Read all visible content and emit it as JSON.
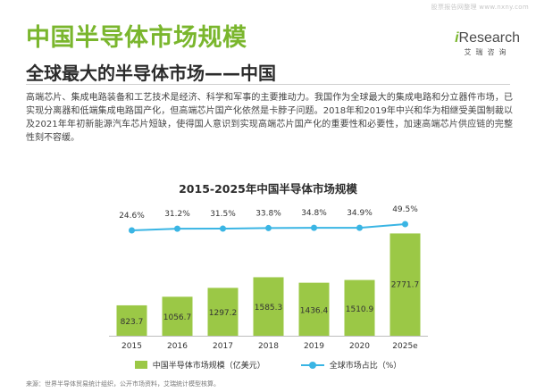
{
  "watermark": "股票报告网整理 www.nxny.com",
  "header": {
    "title": "中国半导体市场规模",
    "subtitle": "全球最大的半导体市场——中国"
  },
  "logo": {
    "mark_i": "i",
    "mark_rest": "Research",
    "sub": "艾瑞咨询"
  },
  "body_text": "高端芯片、集成电路装备和工艺技术是经济、科学和军事的主要推动力。我国作为全球最大的集成电路和分立器件市场，已实现分离器和低端集成电路国产化，但高端芯片国产化依然是卡脖子问题。2018年和2019年中兴和华为相继受美国制裁以及2021年年初新能源汽车芯片短缺，使得国人意识到实现高端芯片国产化的重要性和必要性，加速高端芯片供应链的完整性刻不容缓。",
  "source": "来源：世界半导体贸易统计组织，公开市场资料，艾瑞统计模型核算。",
  "colors": {
    "accent": "#7ab62d",
    "bar": "#9bc846",
    "line": "#3ab5e4"
  },
  "chart_data": {
    "type": "bar",
    "title": "2015-2025年中国半导体市场规模",
    "categories": [
      "2015",
      "2016",
      "2017",
      "2018",
      "2019",
      "2020",
      "2025e"
    ],
    "series": [
      {
        "name": "中国半导体市场规模（亿美元）",
        "type": "bar",
        "values": [
          823.7,
          1056.7,
          1297.2,
          1585.3,
          1436.4,
          1510.9,
          2771.7
        ],
        "labels": [
          "823.7",
          "1056.7",
          "1297.2",
          "1585.3",
          "1436.4",
          "1510.9",
          "2771.7"
        ]
      },
      {
        "name": "全球市场占比（%）",
        "type": "line",
        "values": [
          24.6,
          31.2,
          31.5,
          33.8,
          34.8,
          34.9,
          49.5
        ],
        "labels": [
          "24.6%",
          "31.2%",
          "31.5%",
          "33.8%",
          "34.8%",
          "34.9%",
          "49.5%"
        ]
      }
    ],
    "ylim": [
      0,
      3000
    ],
    "legend": "bottom",
    "grid": false
  }
}
